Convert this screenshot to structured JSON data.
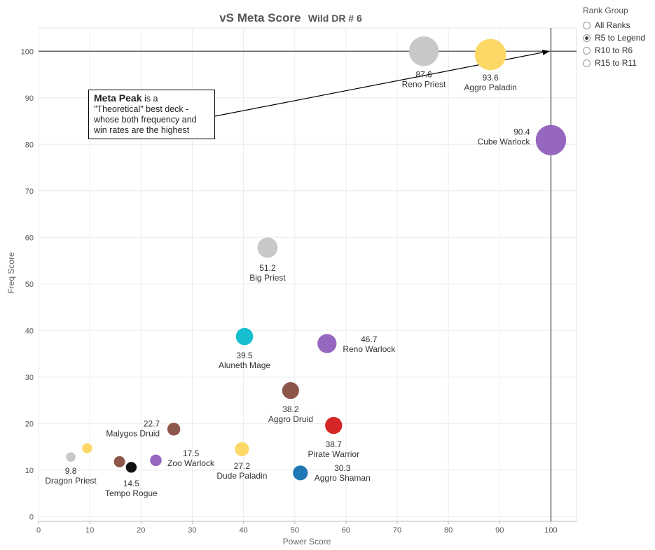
{
  "chart_data": {
    "type": "scatter",
    "title": "vS Meta Score",
    "subtitle": "Wild DR # 6",
    "xlabel": "Power Score",
    "ylabel": "Freq Score",
    "xlim": [
      0,
      105
    ],
    "ylim": [
      -1,
      105
    ],
    "xticks": [
      "0",
      "10",
      "20",
      "30",
      "40",
      "50",
      "60",
      "70",
      "80",
      "90",
      "100"
    ],
    "yticks": [
      "0",
      "10",
      "20",
      "30",
      "40",
      "50",
      "60",
      "70",
      "80",
      "90",
      "100"
    ],
    "reference_lines": {
      "x": 100,
      "y": 100
    },
    "grid": true,
    "points": [
      {
        "name": "Reno Priest",
        "value_label": "87.6",
        "x": 75.2,
        "y": 100,
        "size": 87.6,
        "color": "#c8c8c8"
      },
      {
        "name": "Aggro Paladin",
        "value_label": "93.6",
        "x": 88.2,
        "y": 99.3,
        "size": 93.6,
        "color": "#fcd967"
      },
      {
        "name": "Cube Warlock",
        "value_label": "90.4",
        "x": 100,
        "y": 80.9,
        "size": 90.4,
        "color": "#9667bf"
      },
      {
        "name": "Big Priest",
        "value_label": "51.2",
        "x": 44.7,
        "y": 57.8,
        "size": 51.2,
        "color": "#c8c8c8"
      },
      {
        "name": "Aluneth Mage",
        "value_label": "39.5",
        "x": 40.2,
        "y": 38.7,
        "size": 39.5,
        "color": "#17becf"
      },
      {
        "name": "Reno Warlock",
        "value_label": "46.7",
        "x": 56.3,
        "y": 37.2,
        "size": 46.7,
        "color": "#9667bf"
      },
      {
        "name": "Aggro Druid",
        "value_label": "38.2",
        "x": 49.2,
        "y": 27.1,
        "size": 38.2,
        "color": "#8c564b"
      },
      {
        "name": "Pirate Warrior",
        "value_label": "38.7",
        "x": 57.6,
        "y": 19.6,
        "size": 38.7,
        "color": "#d62728"
      },
      {
        "name": "Malygos Druid",
        "value_label": "22.7",
        "x": 26.4,
        "y": 18.8,
        "size": 22.7,
        "color": "#8c564b"
      },
      {
        "name": "Dude Paladin",
        "value_label": "27.2",
        "x": 39.7,
        "y": 14.5,
        "size": 27.2,
        "color": "#fcd967"
      },
      {
        "name": "Aggro Shaman",
        "value_label": "30.3",
        "x": 51.1,
        "y": 9.4,
        "size": 30.3,
        "color": "#1f77b4"
      },
      {
        "name": "Zoo Warlock",
        "value_label": "17.5",
        "x": 22.9,
        "y": 12.1,
        "size": 17.5,
        "color": "#9667bf"
      },
      {
        "name": "Tempo Rogue",
        "value_label": "14.5",
        "x": 18.1,
        "y": 10.6,
        "size": 14.5,
        "color": "#111111"
      },
      {
        "name": "",
        "value_label": "",
        "x": 15.8,
        "y": 11.8,
        "size": 16,
        "color": "#8c564b"
      },
      {
        "name": "",
        "value_label": "",
        "x": 9.5,
        "y": 14.7,
        "size": 12,
        "color": "#fcd967"
      },
      {
        "name": "Dragon Priest",
        "value_label": "9.8",
        "x": 6.3,
        "y": 12.8,
        "size": 9.8,
        "color": "#c8c8c8"
      }
    ],
    "annotation": {
      "bold": "Meta Peak",
      "text": " is a \"Theoretical\" best deck - whose both frequency and win rates are the highest"
    }
  },
  "legend": {
    "title": "Rank Group",
    "options": [
      {
        "label": "All Ranks",
        "checked": false
      },
      {
        "label": "R5 to Legend",
        "checked": true
      },
      {
        "label": "R10 to R6",
        "checked": false
      },
      {
        "label": "R15 to R11",
        "checked": false
      }
    ]
  }
}
